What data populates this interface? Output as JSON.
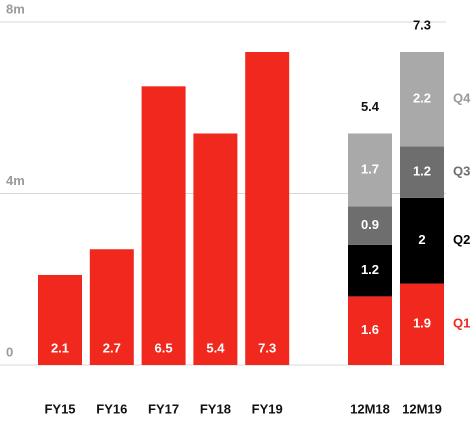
{
  "chart_data": [
    {
      "type": "bar",
      "categories": [
        "FY15",
        "FY16",
        "FY17",
        "FY18",
        "FY19"
      ],
      "values": [
        2.1,
        2.7,
        6.5,
        5.4,
        7.3
      ],
      "color": "#f0281e",
      "ylim": [
        0,
        8
      ],
      "yticks": [
        0,
        {
          "value": 4,
          "label": "4m"
        },
        {
          "value": 8,
          "label": "8m"
        }
      ],
      "grid": true
    },
    {
      "type": "stacked_bar",
      "categories": [
        "12M18",
        "12M19"
      ],
      "series": [
        {
          "name": "Q1",
          "color": "#f0281e",
          "values": [
            1.6,
            1.9
          ]
        },
        {
          "name": "Q2",
          "color": "#000000",
          "values": [
            1.2,
            2.0
          ]
        },
        {
          "name": "Q3",
          "color": "#6e6e6e",
          "values": [
            0.9,
            1.2
          ]
        },
        {
          "name": "Q4",
          "color": "#a9a9a9",
          "values": [
            1.7,
            2.2
          ]
        }
      ],
      "totals": [
        5.4,
        7.3
      ],
      "ylim": [
        0,
        8
      ]
    }
  ]
}
